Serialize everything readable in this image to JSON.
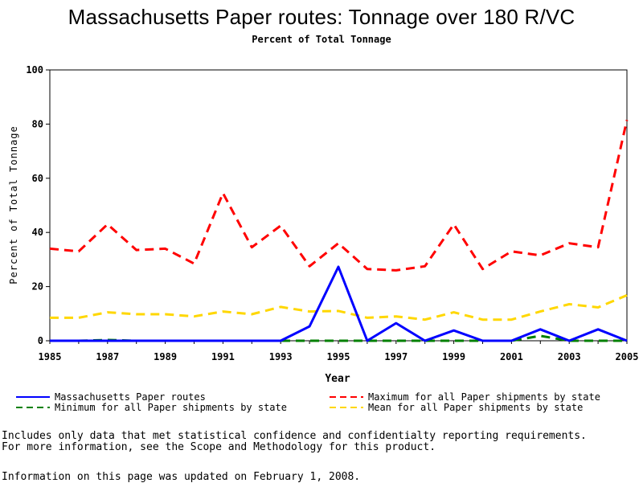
{
  "chart_data": {
    "type": "line",
    "title": "Massachusetts Paper routes: Tonnage over 180 R/VC",
    "subtitle": "Percent of Total Tonnage",
    "xlabel": "Year",
    "ylabel": "Percent of Total Tonnage",
    "xlim": [
      1985,
      2005
    ],
    "ylim": [
      0,
      100
    ],
    "x_ticks": [
      1985,
      1987,
      1989,
      1991,
      1993,
      1995,
      1997,
      1999,
      2001,
      2003,
      2005
    ],
    "y_ticks": [
      0,
      20,
      40,
      60,
      80,
      100
    ],
    "grid": false,
    "legend_position": "bottom",
    "x": [
      1985,
      1986,
      1987,
      1988,
      1989,
      1990,
      1991,
      1992,
      1993,
      1994,
      1995,
      1996,
      1997,
      1998,
      1999,
      2000,
      2001,
      2002,
      2003,
      2004,
      2005
    ],
    "series": [
      {
        "name": "Massachusetts Paper routes",
        "color": "#0000ff",
        "style": "solid",
        "values": [
          0,
          0,
          0,
          0,
          0,
          0,
          0,
          0,
          0,
          5.3,
          27.3,
          0,
          6.5,
          0,
          3.8,
          0,
          0,
          4.2,
          0,
          4.2,
          0
        ]
      },
      {
        "name": "Maximum for all Paper shipments by state",
        "color": "#ff0000",
        "style": "dashed",
        "values": [
          34,
          33,
          43,
          33.5,
          34,
          28.5,
          54.5,
          34.5,
          42.5,
          27.5,
          36,
          26.5,
          26,
          27.5,
          43,
          26.5,
          33,
          31.5,
          36,
          34.5,
          81.5
        ]
      },
      {
        "name": "Minimum for all Paper shipments by state",
        "color": "#008000",
        "style": "dashed",
        "values": [
          0,
          0,
          0.3,
          0,
          0,
          0,
          0,
          0,
          0,
          0,
          0,
          0,
          0,
          0,
          0,
          0,
          0,
          1.8,
          0,
          0,
          0
        ]
      },
      {
        "name": "Mean for all Paper shipments by state",
        "color": "#ffd700",
        "style": "dashed",
        "values": [
          8.5,
          8.5,
          10.5,
          9.8,
          9.8,
          9,
          10.8,
          9.8,
          12.5,
          10.8,
          11,
          8.5,
          9,
          7.8,
          10.5,
          7.8,
          7.8,
          10.8,
          13.5,
          12.3,
          16.8
        ]
      }
    ]
  },
  "notes": {
    "line1": "Includes only data that met statistical confidence and confidentialty reporting requirements.",
    "line2": "For more information, see the Scope and Methodology for this product.",
    "updated": "Information on this page was updated on February 1, 2008."
  }
}
